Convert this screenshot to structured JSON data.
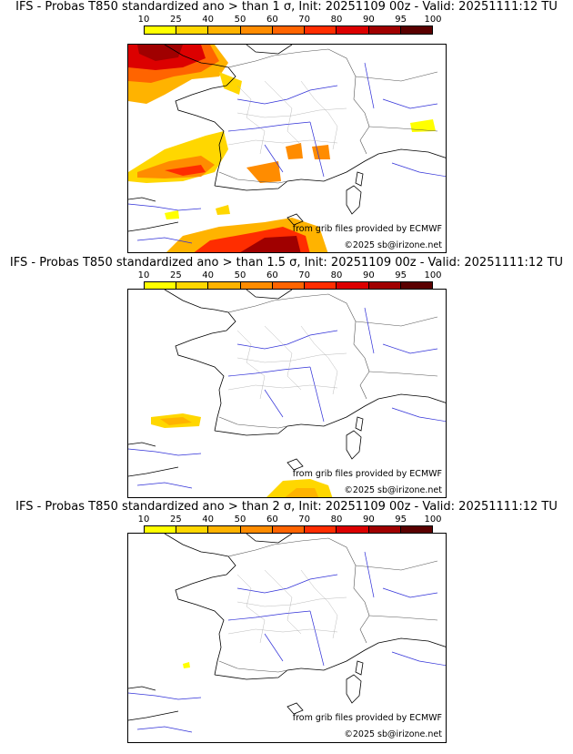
{
  "scale": {
    "ticks": [
      "10",
      "25",
      "40",
      "50",
      "60",
      "70",
      "80",
      "90",
      "95",
      "100"
    ],
    "colors": [
      "#ffff00",
      "#ffd700",
      "#ffb300",
      "#ff8c00",
      "#ff6400",
      "#ff2d00",
      "#dc0000",
      "#a00000",
      "#5a0000"
    ]
  },
  "credits": {
    "source": "from grib files provided by ECMWF",
    "copyright": "©2025 sb@irizone.net"
  },
  "panels": [
    {
      "title": "IFS - Probas T850  standardized ano > than 1 σ, Init: 20251109 00z - Valid: 20251111:12 TU"
    },
    {
      "title": "IFS - Probas T850  standardized ano > than 1.5 σ, Init: 20251109 00z - Valid: 20251111:12 TU"
    },
    {
      "title": "IFS - Probas T850  standardized ano > than 2 σ, Init: 20251109 00z - Valid: 20251111:12 TU"
    }
  ]
}
